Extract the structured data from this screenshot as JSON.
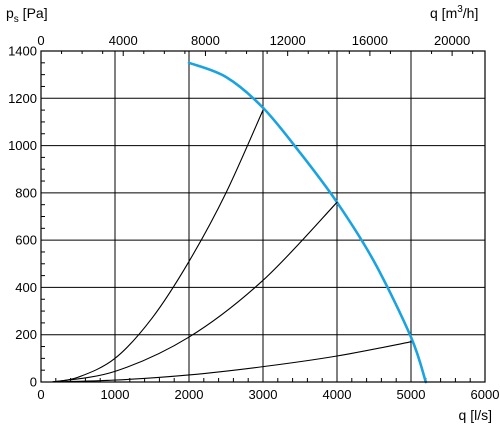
{
  "chart_data": {
    "type": "line",
    "grid": true,
    "y_axis": {
      "label_main": "p",
      "label_sub": "s",
      "label_unit": " [Pa]",
      "range": [
        0,
        1400
      ],
      "ticks": [
        0,
        200,
        400,
        600,
        800,
        1000,
        1200,
        1400
      ],
      "tick_labels": [
        "0",
        "200",
        "400",
        "600",
        "800",
        "1000",
        "1200",
        "1400"
      ]
    },
    "x_axis_bottom": {
      "label": "q [l/s]",
      "range": [
        0,
        6000
      ],
      "ticks": [
        0,
        1000,
        2000,
        3000,
        4000,
        5000,
        6000
      ],
      "tick_labels": [
        "0",
        "1000",
        "2000",
        "3000",
        "4000",
        "5000",
        "6000"
      ]
    },
    "x_axis_top": {
      "label_main": "q [m",
      "label_sup": "3",
      "label_end": "/h]",
      "range": [
        0,
        21600
      ],
      "ticks": [
        0,
        4000,
        8000,
        12000,
        16000,
        20000
      ],
      "tick_labels": [
        "0",
        "4000",
        "8000",
        "12000",
        "16000",
        "20000"
      ]
    },
    "series": [
      {
        "color": "#1aa3e0",
        "points": [
          [
            2000,
            1350
          ],
          [
            2500,
            1290
          ],
          [
            3000,
            1160
          ],
          [
            3500,
            970
          ],
          [
            4000,
            760
          ],
          [
            4500,
            510
          ],
          [
            5000,
            190
          ],
          [
            5200,
            0
          ]
        ]
      },
      {
        "color": "#000000",
        "points": [
          [
            150,
            0
          ],
          [
            500,
            20
          ],
          [
            1000,
            100
          ],
          [
            1500,
            270
          ],
          [
            2000,
            510
          ],
          [
            2500,
            800
          ],
          [
            3000,
            1150
          ]
        ]
      },
      {
        "color": "#000000",
        "points": [
          [
            150,
            0
          ],
          [
            1000,
            45
          ],
          [
            2000,
            190
          ],
          [
            3000,
            430
          ],
          [
            4000,
            760
          ]
        ]
      },
      {
        "color": "#000000",
        "points": [
          [
            150,
            0
          ],
          [
            1000,
            8
          ],
          [
            2000,
            30
          ],
          [
            3000,
            65
          ],
          [
            4000,
            110
          ],
          [
            5000,
            170
          ]
        ]
      }
    ]
  }
}
